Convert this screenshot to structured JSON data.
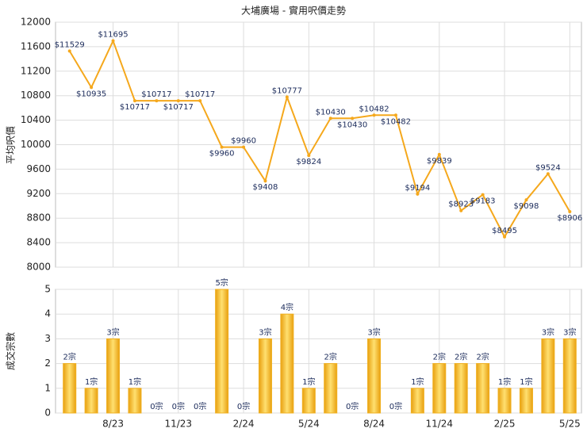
{
  "chart_data": [
    {
      "type": "line",
      "title": "大埔廣場 - 實用呎價走勢",
      "y_label": "平均呎價",
      "color": "#f5a81c",
      "values": [
        11529,
        10935,
        11695,
        10717,
        10717,
        10717,
        10717,
        9960,
        9960,
        9408,
        10777,
        9824,
        10430,
        10430,
        10482,
        10482,
        9194,
        9839,
        8923,
        9183,
        8495,
        9098,
        9524,
        8906
      ],
      "value_labels": [
        "$11529",
        "$10935",
        "$11695",
        "$10717",
        "$10717",
        "$10717",
        "$10717",
        "$9960",
        "$9960",
        "$9408",
        "$10777",
        "$9824",
        "$10430",
        "$10430",
        "$10482",
        "$10482",
        "$9194",
        "$9839",
        "$8923",
        "$9183",
        "$8495",
        "$9098",
        "$9524",
        "$8906"
      ],
      "ylim": [
        8000,
        12000
      ],
      "yticks": [
        8000,
        8400,
        8800,
        9200,
        9600,
        10000,
        10400,
        10800,
        11200,
        11600,
        12000
      ],
      "grid": true
    },
    {
      "type": "bar",
      "y_label": "成交宗數",
      "color": "#f0b020",
      "categories": [
        null,
        null,
        "8/23",
        null,
        null,
        "11/23",
        null,
        null,
        "2/24",
        null,
        null,
        "5/24",
        null,
        null,
        "8/24",
        null,
        null,
        "11/24",
        null,
        null,
        "2/25",
        null,
        null,
        "5/25"
      ],
      "values": [
        2,
        1,
        3,
        1,
        0,
        0,
        0,
        5,
        0,
        3,
        4,
        1,
        2,
        0,
        3,
        0,
        1,
        2,
        2,
        2,
        1,
        1,
        3,
        3
      ],
      "value_labels": [
        "2宗",
        "1宗",
        "3宗",
        "1宗",
        "0宗",
        "0宗",
        "0宗",
        "5宗",
        "0宗",
        "3宗",
        "4宗",
        "1宗",
        "2宗",
        "0宗",
        "3宗",
        "0宗",
        "1宗",
        "2宗",
        "2宗",
        "2宗",
        "1宗",
        "1宗",
        "3宗",
        "3宗"
      ],
      "ylim": [
        0,
        5
      ],
      "yticks": [
        0,
        1,
        2,
        3,
        4,
        5
      ],
      "grid": true
    }
  ]
}
